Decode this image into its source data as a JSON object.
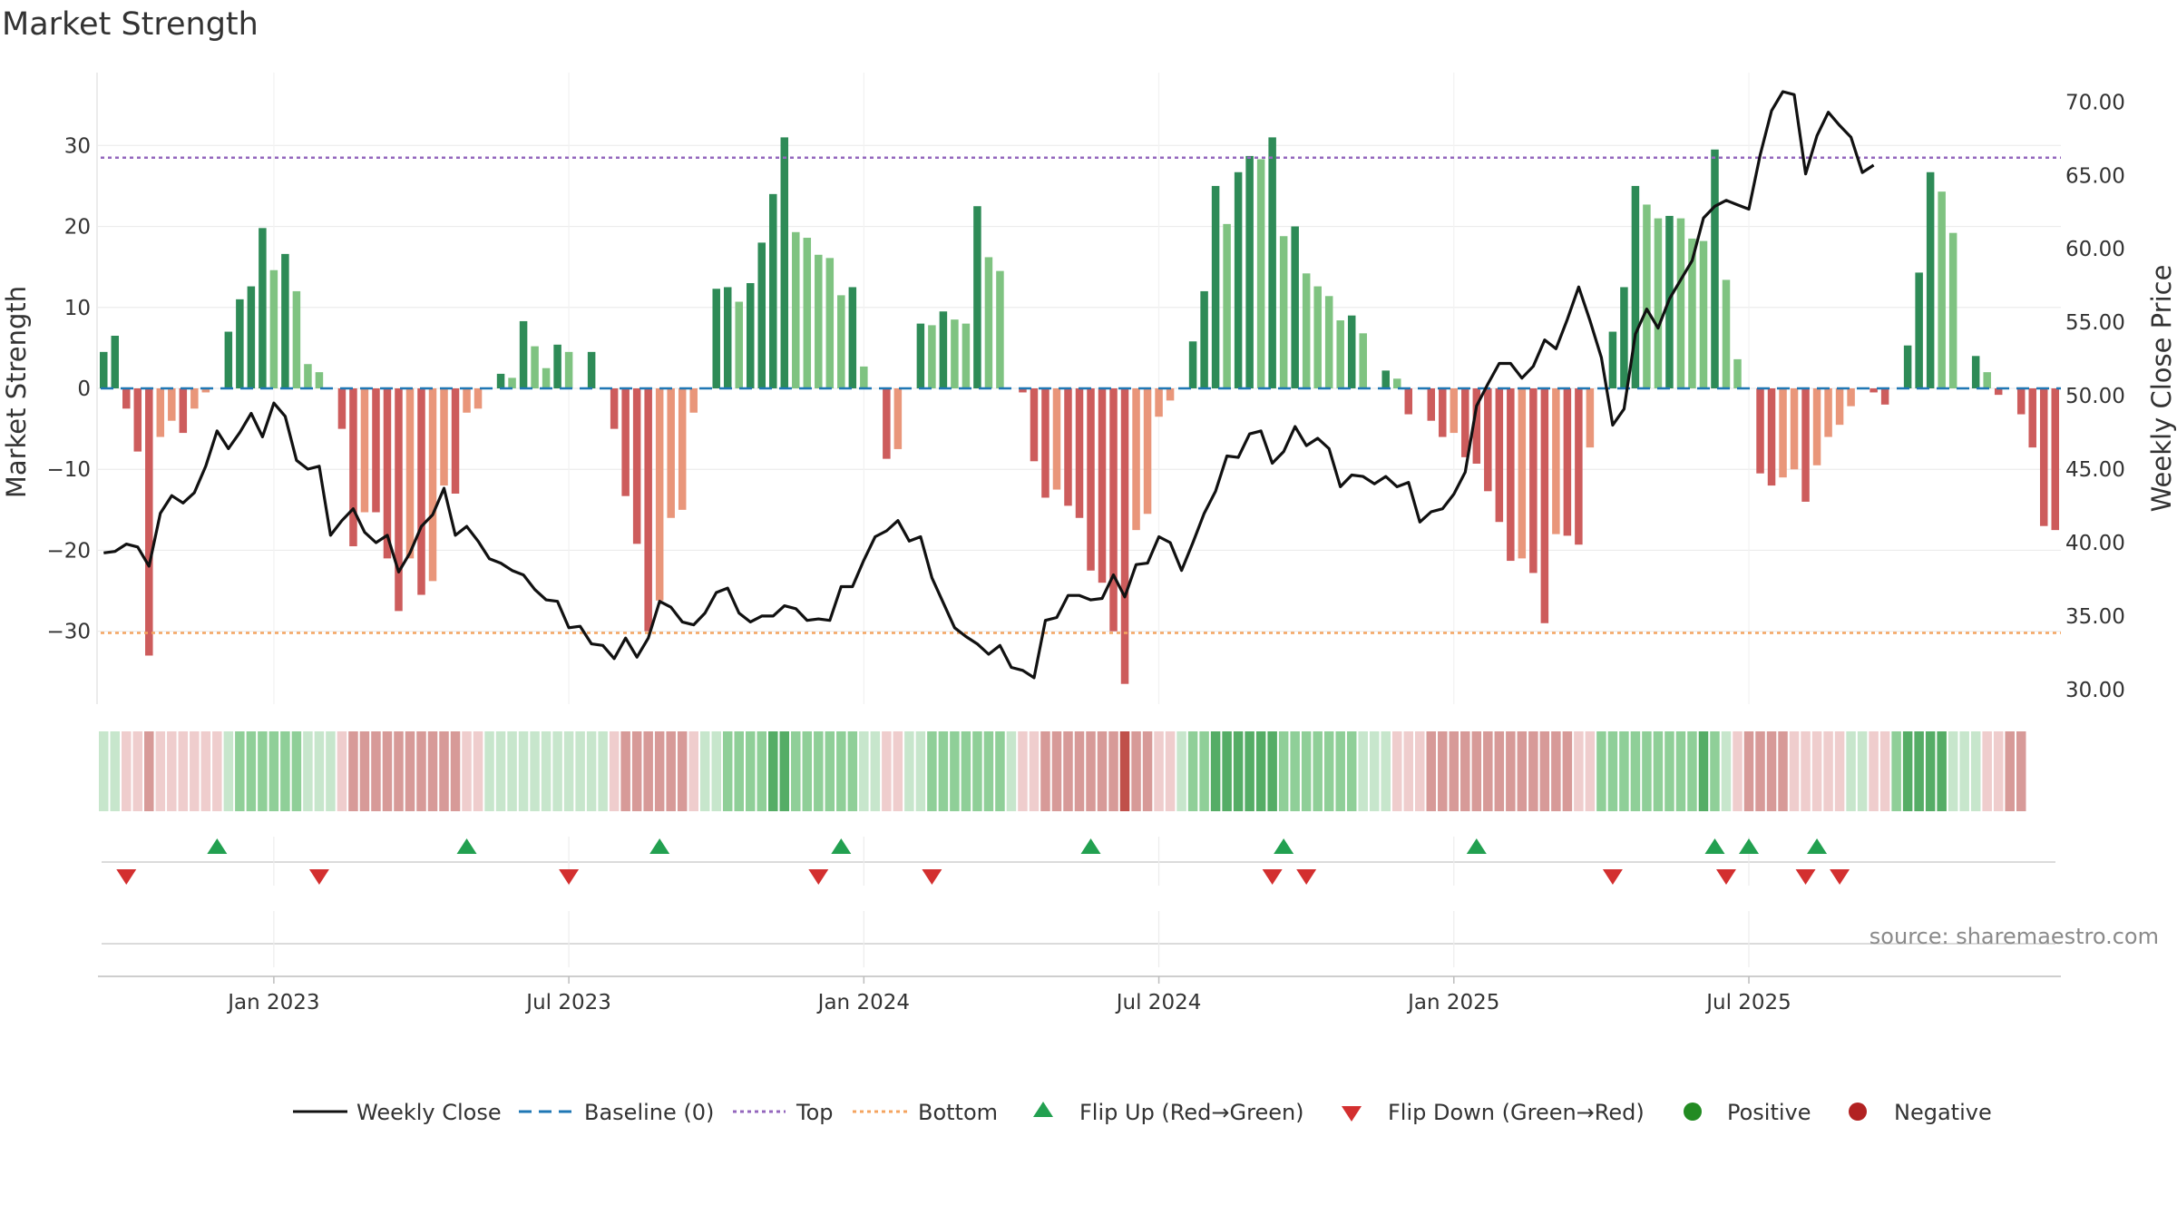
{
  "chart_data": {
    "type": "bar+line",
    "title": "Market Strength",
    "source": "source: sharemaestro.com",
    "colors": {
      "pos_dark": "#2e8b57",
      "pos_light": "#7fc381",
      "neg_dark": "#cd5c5c",
      "neg_light": "#e9967a",
      "close_line": "#111111",
      "baseline": "#1f77b4",
      "top_line": "#9467bd",
      "bottom_line": "#f4a460",
      "flip_up": "#22a050",
      "flip_down": "#d32f2f",
      "positive": "#228b22",
      "negative": "#b22222"
    },
    "left_axis": {
      "label": "Market Strength",
      "range": [
        -39,
        39
      ],
      "ticks": [
        30,
        20,
        10,
        0,
        -10,
        -20,
        -30
      ],
      "tick_labels": [
        "30",
        "20",
        "10",
        "0",
        "−10",
        "−20",
        "−30"
      ]
    },
    "right_axis": {
      "label": "Weekly Close Price",
      "range": [
        29,
        72
      ],
      "ticks": [
        70,
        65,
        60,
        55,
        50,
        45,
        40,
        35,
        30
      ],
      "tick_labels": [
        "70.00",
        "65.00",
        "60.00",
        "55.00",
        "50.00",
        "45.00",
        "40.00",
        "35.00",
        "30.00"
      ]
    },
    "x_axis": {
      "ticks": [
        "Jan 2023",
        "Jul 2023",
        "Jan 2024",
        "Jul 2024",
        "Jan 2025",
        "Jul 2025"
      ],
      "tick_weeks": [
        15,
        41,
        67,
        93,
        119,
        145
      ]
    },
    "thresholds": {
      "top": 28.5,
      "bottom": -30.2,
      "baseline": 0
    },
    "strength": [
      4.5,
      6.5,
      -2.5,
      -7.8,
      -33,
      -6,
      -4,
      -5.5,
      -2.5,
      -0.5,
      0,
      7,
      11,
      12.6,
      19.8,
      14.6,
      16.6,
      12,
      3,
      2,
      0,
      -5,
      -19.5,
      -15.3,
      -15.3,
      -21,
      -27.5,
      -21,
      -25.5,
      -23.8,
      -12,
      -13,
      -3,
      -2.5,
      0,
      1.8,
      1.3,
      8.3,
      5.2,
      2.5,
      5.4,
      4.5,
      0,
      4.5,
      0,
      -5,
      -13.3,
      -19.2,
      -30,
      -26.2,
      -16,
      -15,
      -3,
      0,
      12.3,
      12.5,
      10.7,
      13,
      18,
      24,
      31,
      19.3,
      18.6,
      16.5,
      16.1,
      11.5,
      12.5,
      2.7,
      0,
      -8.7,
      -7.5,
      0,
      8,
      7.8,
      9.5,
      8.5,
      8,
      22.5,
      16.2,
      14.5,
      0,
      -0.5,
      -9,
      -13.5,
      -12.5,
      -14.5,
      -16,
      -22.5,
      -24,
      -30,
      -36.5,
      -17.5,
      -15.5,
      -3.5,
      -1.5,
      0,
      5.8,
      12,
      25,
      20.3,
      26.7,
      28.7,
      28.3,
      31,
      18.8,
      20,
      14.2,
      12.6,
      11.4,
      8.4,
      9,
      6.8,
      0,
      2.2,
      1.2,
      -3.2,
      0,
      -4,
      -6,
      -5.5,
      -8.5,
      -9.3,
      -12.7,
      -16.5,
      -21.3,
      -21,
      -22.8,
      -29,
      -18,
      -18.2,
      -19.3,
      -7.3,
      0,
      7,
      12.5,
      25,
      22.7,
      21,
      21.3,
      21,
      18.5,
      18.2,
      29.5,
      13.4,
      3.6,
      0,
      -10.5,
      -12,
      -11,
      -10,
      -14,
      -9.5,
      -6,
      -4.5,
      -2.2,
      0,
      -0.5,
      -2,
      0,
      5.3,
      14.3,
      26.7,
      24.3,
      19.2,
      0,
      4,
      2,
      -0.8,
      0,
      -3.2,
      -7.3,
      -17,
      -17.5
    ],
    "close": [
      39.3,
      39.4,
      39.9,
      39.7,
      38.4,
      42,
      43.2,
      42.7,
      43.4,
      45.2,
      47.6,
      46.4,
      47.5,
      48.8,
      47.2,
      49.5,
      48.6,
      45.6,
      45,
      45.2,
      40.5,
      41.5,
      42.3,
      40.7,
      40,
      40.5,
      38,
      39.3,
      41.1,
      41.9,
      43.7,
      40.5,
      41.1,
      40.1,
      38.9,
      38.6,
      38.1,
      37.8,
      36.8,
      36.1,
      36,
      34.2,
      34.3,
      33.1,
      33,
      32.1,
      33.5,
      32.2,
      33.5,
      36,
      35.6,
      34.6,
      34.4,
      35.2,
      36.6,
      36.9,
      35.2,
      34.6,
      35,
      35,
      35.7,
      35.5,
      34.7,
      34.8,
      34.7,
      37,
      37,
      38.8,
      40.4,
      40.8,
      41.5,
      40.1,
      40.4,
      37.6,
      35.9,
      34.2,
      33.6,
      33.1,
      32.4,
      33,
      31.5,
      31.3,
      30.8,
      34.7,
      34.9,
      36.4,
      36.4,
      36.1,
      36.2,
      37.8,
      36.3,
      38.5,
      38.6,
      40.4,
      40,
      38.1,
      40,
      42,
      43.5,
      45.9,
      45.8,
      47.4,
      47.6,
      45.4,
      46.2,
      47.9,
      46.6,
      47.1,
      46.4,
      43.8,
      44.6,
      44.5,
      44,
      44.5,
      43.8,
      44.1,
      41.4,
      42.1,
      42.3,
      43.3,
      44.8,
      49.3,
      50.8,
      52.2,
      52.2,
      51.2,
      52,
      53.8,
      53.2,
      55.2,
      57.4,
      55.1,
      52.6,
      48,
      49.1,
      54.2,
      55.9,
      54.6,
      56.6,
      57.9,
      59.2,
      62.1,
      62.9,
      63.3,
      63,
      62.7,
      66.4,
      69.4,
      70.7,
      70.5,
      65.1,
      67.7,
      69.3,
      68.4,
      67.6,
      65.2,
      65.7
    ],
    "band": [
      1,
      1,
      -1,
      -1,
      -2,
      -1,
      -1,
      -1,
      -1,
      -1,
      -1,
      1,
      2,
      2,
      2,
      2,
      2,
      2,
      1,
      1,
      1,
      -1,
      -2,
      -2,
      -2,
      -2,
      -2,
      -2,
      -2,
      -2,
      -2,
      -2,
      -1,
      -1,
      1,
      1,
      1,
      1,
      1,
      1,
      1,
      1,
      1,
      1,
      1,
      -1,
      -2,
      -2,
      -2,
      -2,
      -2,
      -2,
      -1,
      1,
      1,
      2,
      2,
      2,
      2,
      3,
      3,
      2,
      2,
      2,
      2,
      2,
      2,
      1,
      1,
      -1,
      -1,
      1,
      1,
      2,
      2,
      2,
      2,
      2,
      2,
      2,
      1,
      -1,
      -1,
      -2,
      -2,
      -2,
      -2,
      -2,
      -2,
      -2,
      -3,
      -2,
      -2,
      -1,
      -1,
      1,
      2,
      2,
      3,
      3,
      3,
      3,
      3,
      3,
      2,
      2,
      2,
      2,
      2,
      2,
      2,
      1,
      1,
      1,
      -1,
      -1,
      -1,
      -2,
      -2,
      -2,
      -2,
      -2,
      -2,
      -2,
      -2,
      -2,
      -2,
      -2,
      -2,
      -2,
      -1,
      -1,
      2,
      2,
      2,
      2,
      2,
      2,
      2,
      2,
      2,
      3,
      2,
      1,
      -1,
      -2,
      -2,
      -2,
      -2,
      -1,
      -1,
      -1,
      -1,
      -1,
      1,
      1,
      -1,
      -1,
      2,
      3,
      3,
      3,
      3,
      1,
      1,
      1,
      -1,
      -1,
      -2,
      -2
    ],
    "flip_up_weeks": [
      10,
      32,
      49,
      65,
      87,
      104,
      121,
      142,
      145,
      151
    ],
    "flip_down_weeks": [
      2,
      19,
      41,
      63,
      73,
      103,
      106,
      133,
      143,
      150,
      153
    ],
    "legend": [
      "Weekly Close",
      "Baseline (0)",
      "Top",
      "Bottom",
      "Flip Up (Red→Green)",
      "Flip Down (Green→Red)",
      "Positive",
      "Negative"
    ]
  }
}
